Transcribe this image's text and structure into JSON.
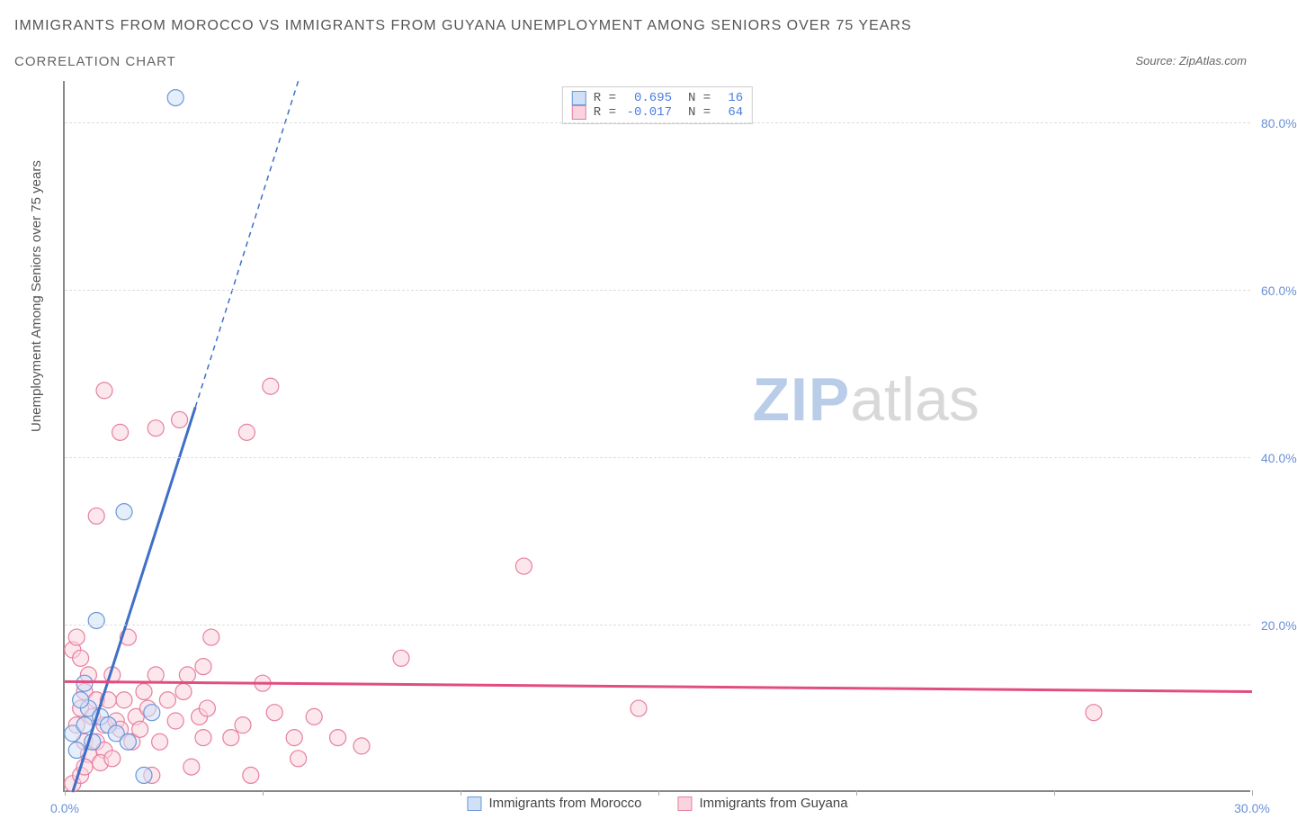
{
  "title": "IMMIGRANTS FROM MOROCCO VS IMMIGRANTS FROM GUYANA UNEMPLOYMENT AMONG SENIORS OVER 75 YEARS",
  "subtitle": "CORRELATION CHART",
  "source_label": "Source: ",
  "source_name": "ZipAtlas.com",
  "y_axis_label": "Unemployment Among Seniors over 75 years",
  "watermark_zip": "ZIP",
  "watermark_atlas": "atlas",
  "chart": {
    "type": "scatter",
    "background_color": "#ffffff",
    "grid_color": "#dddddd",
    "axis_color": "#888888",
    "text_color": "#555555",
    "tick_label_color": "#6a8fd8",
    "xlim": [
      0,
      30
    ],
    "ylim": [
      0,
      85
    ],
    "x_ticks": [
      0,
      5,
      10,
      15,
      20,
      25,
      30
    ],
    "x_tick_labels": [
      "0.0%",
      "",
      "",
      "",
      "",
      "",
      "30.0%"
    ],
    "y_ticks": [
      20,
      40,
      60,
      80
    ],
    "y_tick_labels": [
      "20.0%",
      "40.0%",
      "60.0%",
      "80.0%"
    ],
    "legend_bottom": [
      {
        "label": "Immigrants from Morocco",
        "color_key": "morocco"
      },
      {
        "label": "Immigrants from Guyana",
        "color_key": "guyana"
      }
    ],
    "stats_legend": [
      {
        "color_key": "morocco",
        "r_label": "R = ",
        "r": "0.695",
        "n_label": "N = ",
        "n": "16"
      },
      {
        "color_key": "guyana",
        "r_label": "R = ",
        "r": "-0.017",
        "n_label": "N = ",
        "n": "64"
      }
    ],
    "series": {
      "morocco": {
        "fill": "#cfe0f7",
        "stroke": "#6a97d8",
        "line_color": "#3f6fc7",
        "marker_radius": 9,
        "fill_opacity": 0.55,
        "regression": {
          "x1": 0.2,
          "y1": 0,
          "x2": 3.3,
          "y2": 46
        },
        "regression_extrap": {
          "x1": 3.3,
          "y1": 46,
          "x2": 5.9,
          "y2": 85
        },
        "points": [
          [
            0.3,
            5
          ],
          [
            0.2,
            7
          ],
          [
            0.5,
            8
          ],
          [
            0.6,
            10
          ],
          [
            0.7,
            6
          ],
          [
            0.4,
            11
          ],
          [
            0.9,
            9
          ],
          [
            1.1,
            8
          ],
          [
            0.8,
            20.5
          ],
          [
            1.3,
            7
          ],
          [
            1.6,
            6
          ],
          [
            2.0,
            2
          ],
          [
            2.2,
            9.5
          ],
          [
            0.5,
            13
          ],
          [
            1.5,
            33.5
          ],
          [
            2.8,
            83
          ]
        ]
      },
      "guyana": {
        "fill": "#f9d3de",
        "stroke": "#e77fa0",
        "line_color": "#e24d80",
        "marker_radius": 9,
        "fill_opacity": 0.55,
        "regression": {
          "x1": 0,
          "y1": 13.2,
          "x2": 30,
          "y2": 12
        },
        "points": [
          [
            0.2,
            1
          ],
          [
            0.4,
            2
          ],
          [
            0.5,
            6
          ],
          [
            0.3,
            8
          ],
          [
            0.4,
            10
          ],
          [
            0.6,
            4.5
          ],
          [
            0.5,
            12
          ],
          [
            0.6,
            14
          ],
          [
            0.2,
            17
          ],
          [
            0.3,
            18.5
          ],
          [
            0.4,
            16
          ],
          [
            0.8,
            6
          ],
          [
            0.7,
            9
          ],
          [
            0.8,
            11
          ],
          [
            1.0,
            5
          ],
          [
            1.0,
            8
          ],
          [
            1.1,
            11
          ],
          [
            1.3,
            8.5
          ],
          [
            1.2,
            14
          ],
          [
            1.4,
            7.5
          ],
          [
            1.5,
            11
          ],
          [
            1.6,
            18.5
          ],
          [
            1.8,
            9
          ],
          [
            1.7,
            6
          ],
          [
            2.0,
            12
          ],
          [
            2.1,
            10
          ],
          [
            2.2,
            2
          ],
          [
            2.3,
            14
          ],
          [
            2.4,
            6
          ],
          [
            2.6,
            11
          ],
          [
            2.8,
            8.5
          ],
          [
            3.0,
            12
          ],
          [
            3.1,
            14
          ],
          [
            3.2,
            3
          ],
          [
            3.4,
            9
          ],
          [
            3.5,
            6.5
          ],
          [
            3.5,
            15
          ],
          [
            3.6,
            10
          ],
          [
            3.7,
            18.5
          ],
          [
            4.2,
            6.5
          ],
          [
            4.5,
            8
          ],
          [
            4.7,
            2
          ],
          [
            5.0,
            13
          ],
          [
            5.3,
            9.5
          ],
          [
            5.8,
            6.5
          ],
          [
            5.9,
            4
          ],
          [
            6.3,
            9
          ],
          [
            6.9,
            6.5
          ],
          [
            7.5,
            5.5
          ],
          [
            8.5,
            16
          ],
          [
            0.8,
            33
          ],
          [
            1.0,
            48
          ],
          [
            1.4,
            43
          ],
          [
            2.3,
            43.5
          ],
          [
            2.9,
            44.5
          ],
          [
            4.6,
            43
          ],
          [
            5.2,
            48.5
          ],
          [
            11.6,
            27
          ],
          [
            14.5,
            10
          ],
          [
            26,
            9.5
          ],
          [
            0.5,
            3
          ],
          [
            0.9,
            3.5
          ],
          [
            1.2,
            4
          ],
          [
            1.9,
            7.5
          ]
        ]
      }
    }
  }
}
